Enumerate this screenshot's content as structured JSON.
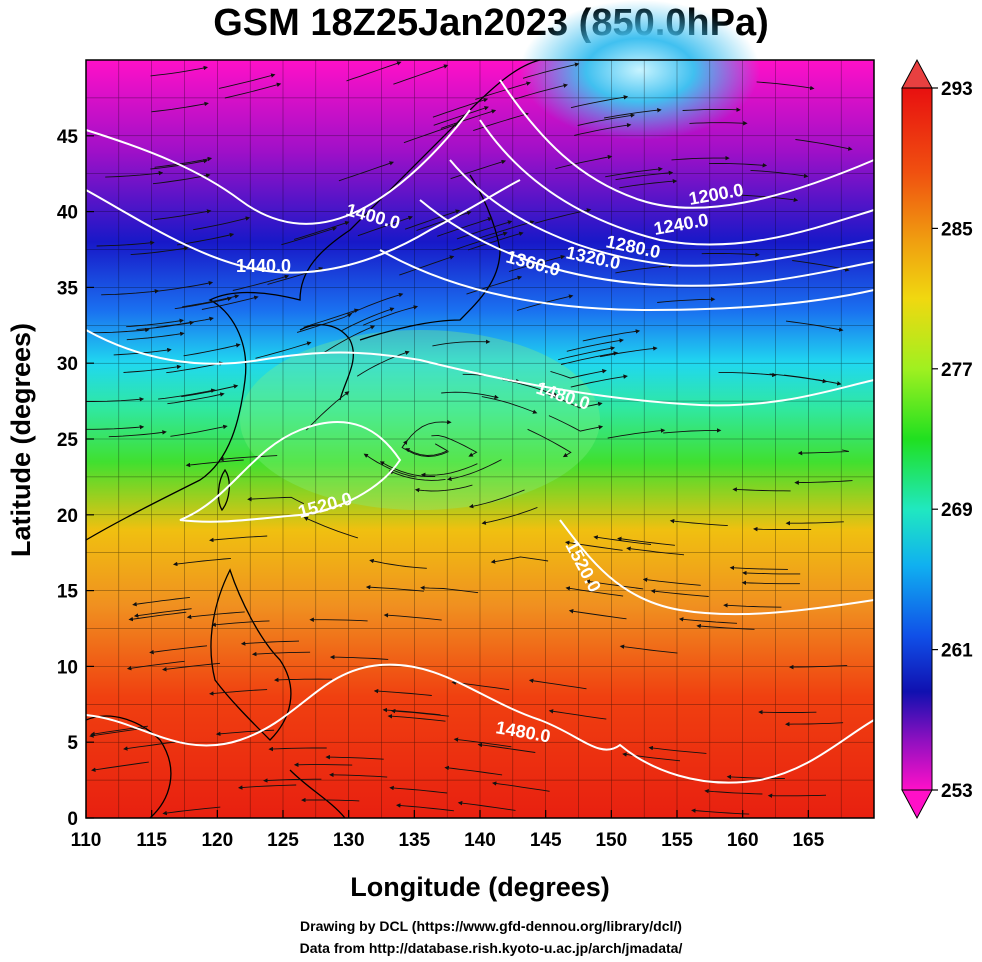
{
  "title": "GSM 18Z25Jan2023 (850.0hPa)",
  "axes": {
    "xlabel": "Longitude (degrees)",
    "ylabel": "Latitude  (degrees)",
    "x_range": [
      110,
      170
    ],
    "y_range": [
      0,
      50
    ],
    "x_ticks": [
      "110",
      "115",
      "120",
      "125",
      "130",
      "135",
      "140",
      "145",
      "150",
      "155",
      "160",
      "165"
    ],
    "y_ticks": [
      "0",
      "5",
      "10",
      "15",
      "20",
      "25",
      "30",
      "35",
      "40",
      "45"
    ]
  },
  "colorbar": {
    "min": 253,
    "max": 293,
    "tick_labels": [
      "293",
      "285",
      "277",
      "269",
      "261",
      "253"
    ],
    "colors": [
      "#ff10c8",
      "#8a10c0",
      "#1010c0",
      "#1060f0",
      "#10c0f0",
      "#10f0c0",
      "#30e030",
      "#c0f010",
      "#f0d010",
      "#f09010",
      "#f03010",
      "#e01010"
    ]
  },
  "contour_labels": [
    {
      "text": "1200.0"
    },
    {
      "text": "1240.0"
    },
    {
      "text": "1280.0"
    },
    {
      "text": "1320.0"
    },
    {
      "text": "1360.0"
    },
    {
      "text": "1400.0"
    },
    {
      "text": "1440.0"
    },
    {
      "text": "1480.0"
    },
    {
      "text": "1520.0"
    },
    {
      "text": "1520.0"
    },
    {
      "text": "1480.0"
    }
  ],
  "credits": {
    "line1": "Drawing by DCL (https://www.gfd-dennou.org/library/dcl/)",
    "line2": "Data from http://database.rish.kyoto-u.ac.jp/arch/jmadata/"
  },
  "chart_data": {
    "type": "heatmap",
    "title": "GSM 18Z25Jan2023 (850.0hPa)",
    "xlabel": "Longitude (degrees)",
    "ylabel": "Latitude  (degrees)",
    "xlim": [
      110,
      170
    ],
    "ylim": [
      0,
      50
    ],
    "colorbar_range": [
      253,
      293
    ],
    "contour_levels": [
      1200,
      1240,
      1280,
      1320,
      1360,
      1400,
      1440,
      1480,
      1520
    ]
  }
}
